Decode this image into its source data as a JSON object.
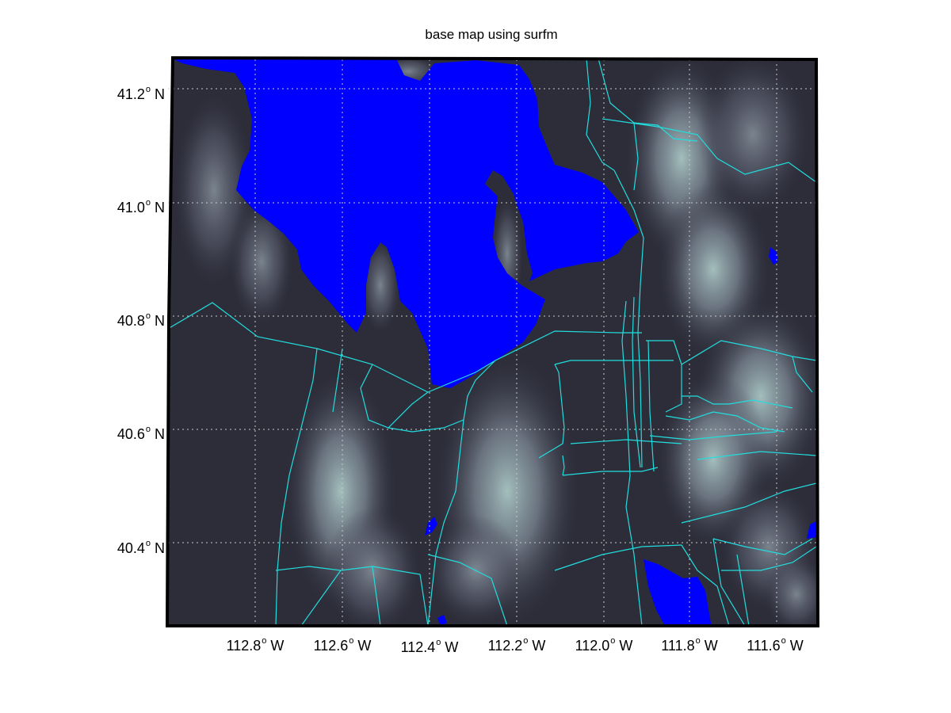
{
  "title": "base map using surfm",
  "lat_labels": [
    {
      "value": "41.2",
      "hemi": "N"
    },
    {
      "value": "41.0",
      "hemi": "N"
    },
    {
      "value": "40.8",
      "hemi": "N"
    },
    {
      "value": "40.6",
      "hemi": "N"
    },
    {
      "value": "40.4",
      "hemi": "N"
    }
  ],
  "lon_labels": [
    {
      "value": "112.8",
      "hemi": "W"
    },
    {
      "value": "112.6",
      "hemi": "W"
    },
    {
      "value": "112.4",
      "hemi": "W"
    },
    {
      "value": "112.2",
      "hemi": "W"
    },
    {
      "value": "112.0",
      "hemi": "W"
    },
    {
      "value": "111.8",
      "hemi": "W"
    },
    {
      "value": "111.6",
      "hemi": "W"
    }
  ],
  "colors": {
    "water": "#0000ff",
    "roads": "#22dddd",
    "terrain_low": "#2b2b38",
    "terrain_high": "#a9c6c4",
    "grid": "#c8c8c8",
    "frame": "#000000"
  }
}
